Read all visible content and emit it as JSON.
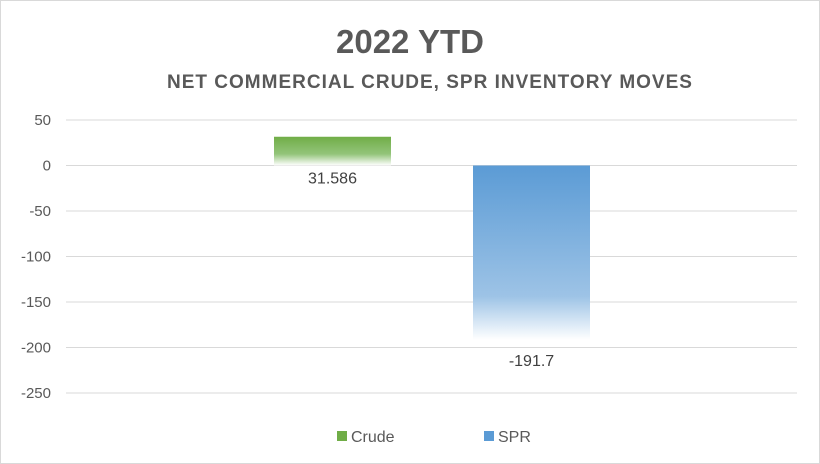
{
  "chart_data": {
    "type": "bar",
    "title": "2022 YTD",
    "subtitle": "NET COMMERCIAL CRUDE, SPR INVENTORY MOVES",
    "categories": [
      "Crude",
      "SPR"
    ],
    "values": [
      31.586,
      -191.7
    ],
    "data_labels": [
      "31.586",
      "-191.7"
    ],
    "ylim": [
      -250,
      50
    ],
    "yticks": [
      50,
      0,
      -50,
      -100,
      -150,
      -200,
      -250
    ],
    "grid": true,
    "legend": {
      "placement": "bottom",
      "entries": [
        "Crude",
        "SPR"
      ]
    },
    "colors": [
      "#70ad47",
      "#5b9bd5"
    ],
    "xlabel": "",
    "ylabel": ""
  }
}
